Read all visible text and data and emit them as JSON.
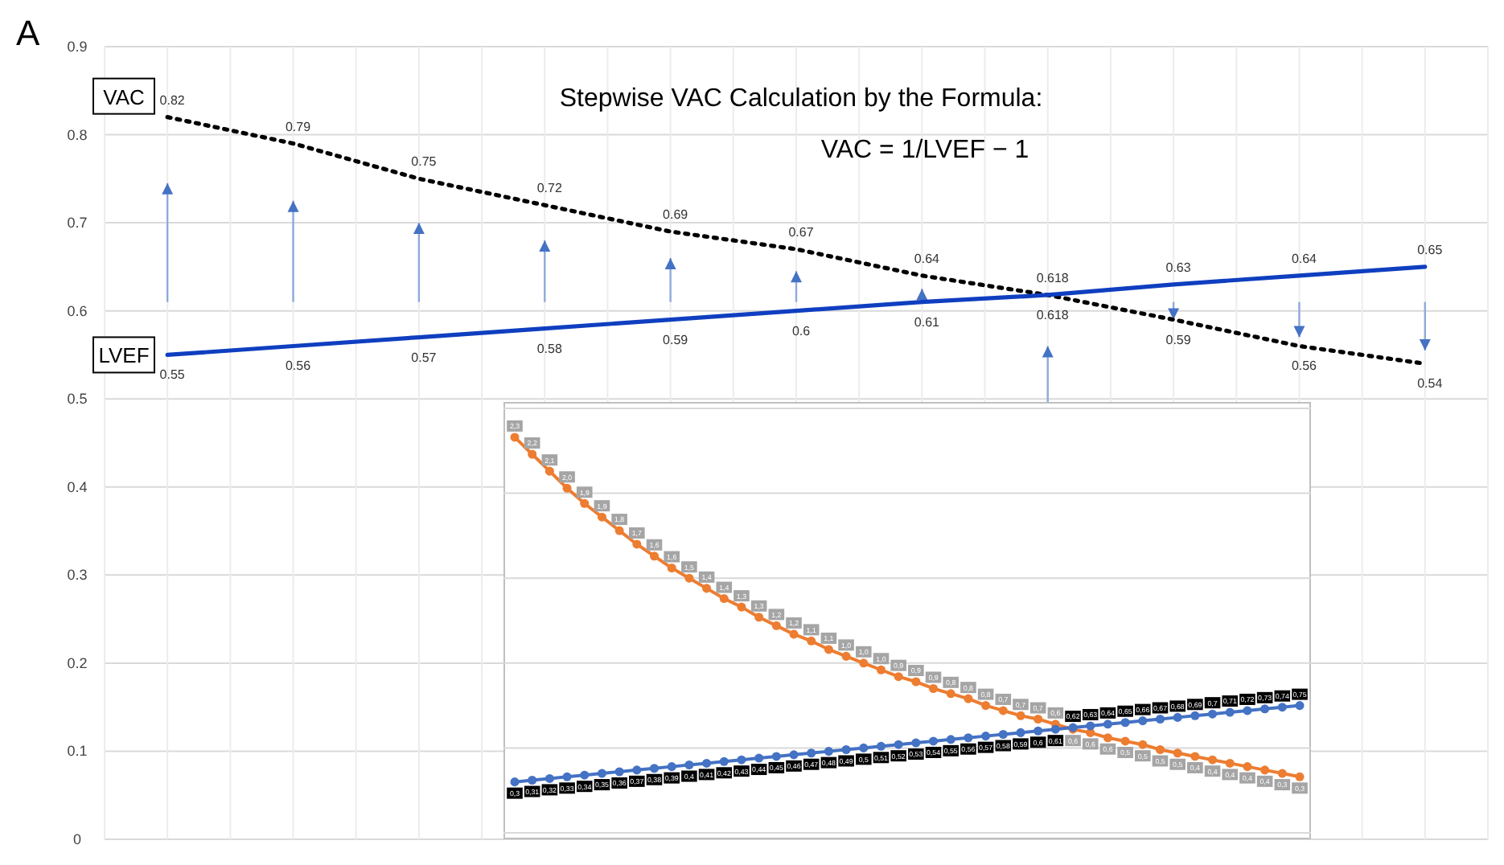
{
  "chart_data": [
    {
      "type": "line",
      "title": "Stepwise VAC Calculation by the Formula:",
      "annotations": [
        "A",
        "VAC = 1/LVEF − 1"
      ],
      "categories": [
        null,
        null,
        null,
        null,
        null,
        null,
        null,
        null,
        null,
        null,
        null
      ],
      "ylim": [
        0,
        0.9
      ],
      "yticks": [
        0,
        0.1,
        0.2,
        0.3,
        0.4,
        0.5,
        0.6,
        0.7,
        0.8,
        0.9
      ],
      "grid": true,
      "tick_labels": "y",
      "data_labels": true,
      "series": [
        {
          "name": "VAC",
          "color": "#000000",
          "line_style": "dotted",
          "values": [
            0.82,
            0.79,
            0.75,
            0.72,
            0.69,
            0.67,
            0.64,
            0.618,
            0.59,
            0.56,
            0.54
          ]
        },
        {
          "name": "LVEF",
          "color": "#0f3fc0",
          "line_style": "solid",
          "values": [
            0.55,
            0.56,
            0.57,
            0.58,
            0.59,
            0.6,
            0.61,
            0.618,
            0.63,
            0.64,
            0.65
          ]
        }
      ]
    },
    {
      "type": "line",
      "categories": [
        null,
        null,
        null,
        null,
        null,
        null,
        null,
        null,
        null,
        null,
        null,
        null,
        null,
        null,
        null,
        null,
        null,
        null,
        null,
        null,
        null,
        null,
        null,
        null,
        null,
        null,
        null,
        null,
        null,
        null,
        null,
        null,
        null,
        null,
        null,
        null,
        null,
        null,
        null,
        null,
        null,
        null,
        null,
        null,
        null,
        null
      ],
      "ylim": [
        0,
        2.5
      ],
      "yticks": [
        {
          "value": 0,
          "label": null
        },
        {
          "value": 0.5,
          "label": null
        },
        {
          "value": 1,
          "label": null
        },
        {
          "value": 1.5,
          "label": null
        },
        {
          "value": 2,
          "label": null
        },
        {
          "value": 2.5,
          "label": null
        }
      ],
      "grid": "y",
      "tick_labels": false,
      "marker": "circle",
      "series": [
        {
          "color": "#ed7d31",
          "values": [
            2.33,
            2.23,
            2.13,
            2.03,
            1.94,
            1.86,
            1.78,
            1.7,
            1.63,
            1.56,
            1.5,
            1.44,
            1.38,
            1.33,
            1.27,
            1.22,
            1.17,
            1.13,
            1.08,
            1.04,
            1.0,
            0.96,
            0.92,
            0.89,
            0.85,
            0.82,
            0.79,
            0.75,
            0.72,
            0.69,
            0.67,
            0.64,
            0.61,
            0.59,
            0.56,
            0.54,
            0.52,
            0.49,
            0.47,
            0.45,
            0.43,
            0.41,
            0.39,
            0.37,
            0.35,
            0.33
          ],
          "value_labels": [
            "2,3",
            "2,2",
            "2,1",
            "2,0",
            "1,9",
            "1,9",
            "1,8",
            "1,7",
            "1,6",
            "1,6",
            "1,5",
            "1,4",
            "1,4",
            "1,3",
            "1,3",
            "1,2",
            "1,2",
            "1,1",
            "1,1",
            "1,0",
            "1,0",
            "1,0",
            "0,9",
            "0,9",
            "0,9",
            "0,8",
            "0,8",
            "0,8",
            "0,7",
            "0,7",
            "0,7",
            "0,6",
            "0,6",
            "0,6",
            "0,6",
            "0,5",
            "0,5",
            "0,5",
            "0,5",
            "0,4",
            "0,4",
            "0,4",
            "0,4",
            "0,4",
            "0,3",
            "0,3"
          ]
        },
        {
          "color": "#4472c4",
          "values": [
            0.3,
            0.31,
            0.32,
            0.33,
            0.34,
            0.35,
            0.36,
            0.37,
            0.38,
            0.39,
            0.4,
            0.41,
            0.42,
            0.43,
            0.44,
            0.45,
            0.46,
            0.47,
            0.48,
            0.49,
            0.5,
            0.51,
            0.52,
            0.53,
            0.54,
            0.55,
            0.56,
            0.57,
            0.58,
            0.59,
            0.6,
            0.61,
            0.62,
            0.63,
            0.64,
            0.65,
            0.66,
            0.67,
            0.68,
            0.69,
            0.7,
            0.71,
            0.72,
            0.73,
            0.74,
            0.75
          ],
          "value_labels": [
            "0,3",
            "0,31",
            "0,32",
            "0,33",
            "0,34",
            "0,35",
            "0,36",
            "0,37",
            "0,38",
            "0,39",
            "0,4",
            "0,41",
            "0,42",
            "0,43",
            "0,44",
            "0,45",
            "0,46",
            "0,47",
            "0,48",
            "0,49",
            "0,5",
            "0,51",
            "0,52",
            "0,53",
            "0,54",
            "0,55",
            "0,56",
            "0,57",
            "0,58",
            "0,59",
            "0,6",
            "0,61",
            "0,62",
            "0,63",
            "0,64",
            "0,65",
            "0,66",
            "0,67",
            "0,68",
            "0,69",
            "0,7",
            "0,71",
            "0,72",
            "0,73",
            "0,74",
            "0,75"
          ]
        }
      ]
    }
  ]
}
